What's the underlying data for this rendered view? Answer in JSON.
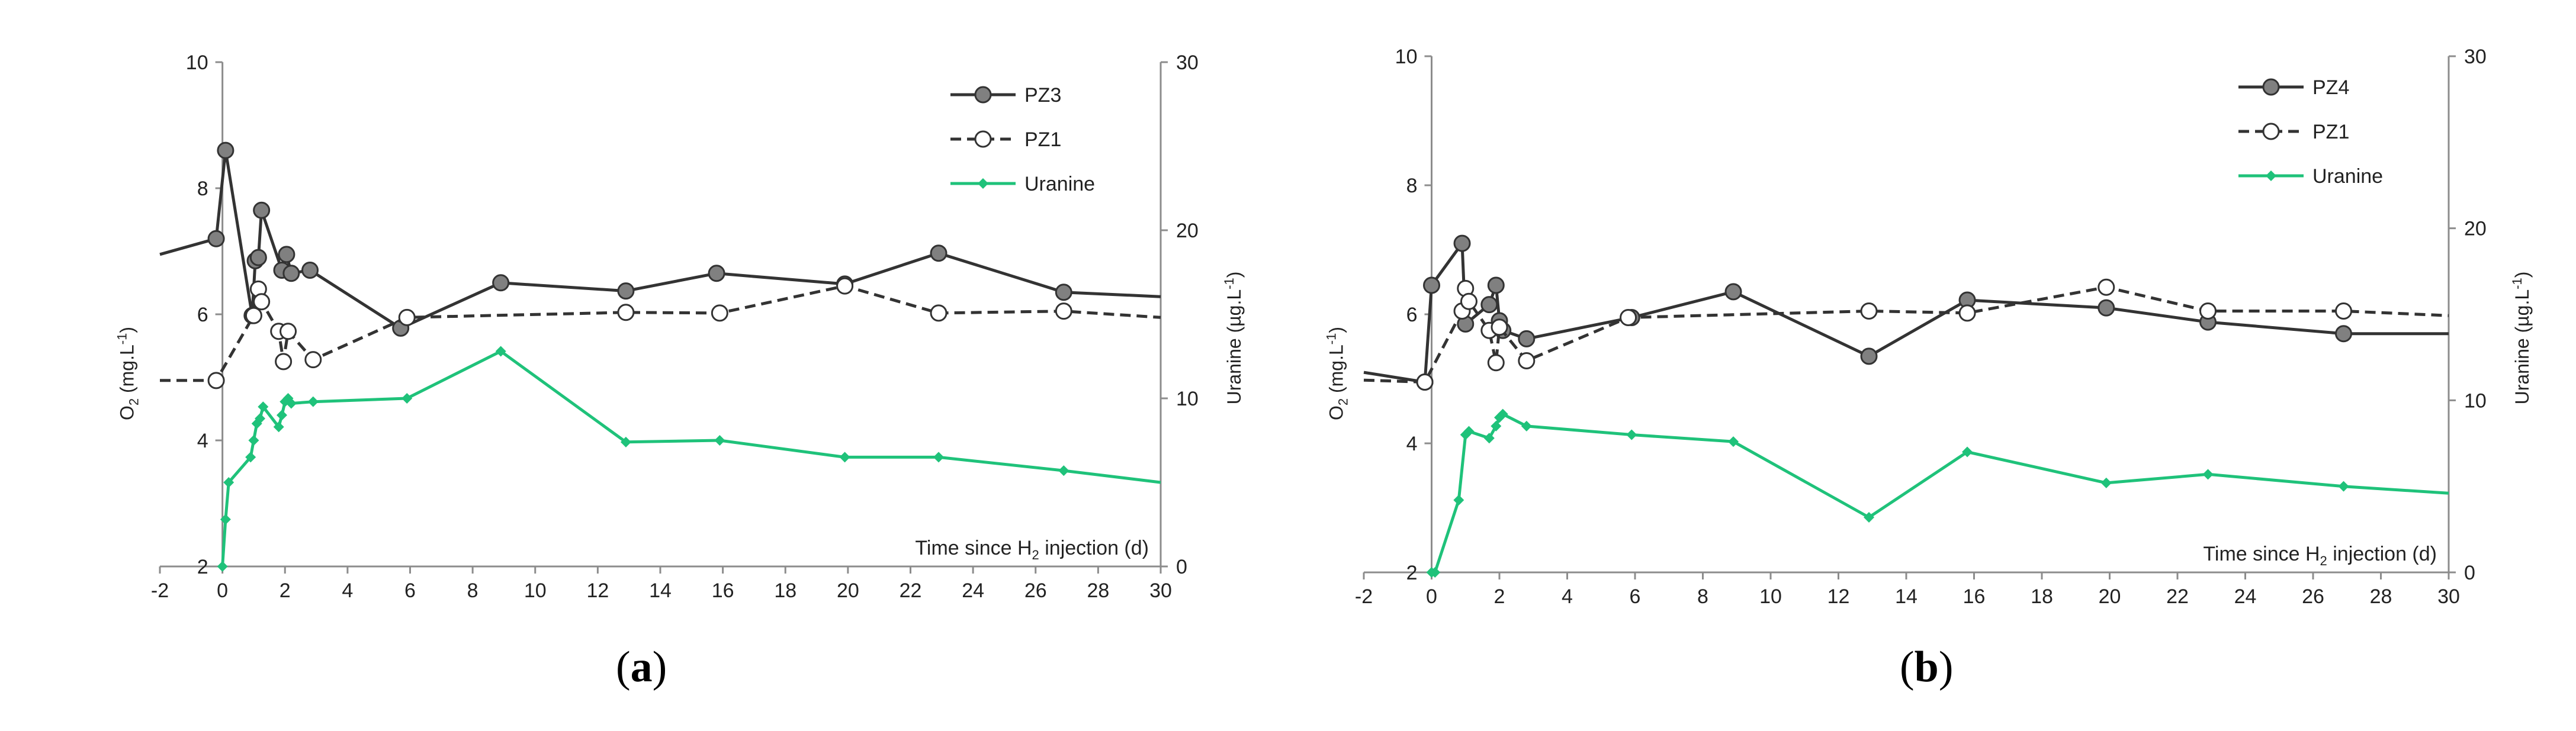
{
  "colors": {
    "oxygen": "#333333",
    "marker_fill": "#808080",
    "uranine": "#1fc27a",
    "axis": "#8c8c8c"
  },
  "panels": [
    {
      "label_open": "(",
      "label_letter": "a",
      "label_close": ")"
    },
    {
      "label_open": "(",
      "label_letter": "b",
      "label_close": ")"
    }
  ],
  "chart_data": [
    {
      "type": "line",
      "panel": "a",
      "xlabel": "Time since H",
      "xlabel_sub": "2",
      "xlabel_end": " injection (d)",
      "ylabel": "O",
      "ylabel_sub": "2",
      "ylabel_end": " (mg.L",
      "ylabel_sup": "-1",
      "ylabel_close": ")",
      "y2label": "Uranine (µg.L",
      "y2label_sup": "-1",
      "y2label_close": ")",
      "xlim": [
        -2,
        30
      ],
      "ylim": [
        2,
        10
      ],
      "y2lim": [
        0,
        30
      ],
      "xticks": [
        -2,
        0,
        2,
        4,
        6,
        8,
        10,
        12,
        14,
        16,
        18,
        20,
        22,
        24,
        26,
        28,
        30
      ],
      "yticks": [
        2,
        4,
        6,
        8,
        10
      ],
      "y2ticks": [
        0,
        10,
        20,
        30
      ],
      "legend_position": "top-right",
      "series": [
        {
          "name": "PZ3",
          "axis": "left",
          "style": "solid-filled-circle",
          "x": [
            -2,
            -0.2,
            0.1,
            0.95,
            1.05,
            1.15,
            1.25,
            1.9,
            2.05,
            2.2,
            2.8,
            5.7,
            8.9,
            12.9,
            15.8,
            19.9,
            22.9,
            26.9,
            30
          ],
          "y": [
            6.95,
            7.2,
            8.6,
            5.98,
            6.85,
            6.9,
            7.65,
            6.7,
            6.95,
            6.65,
            6.7,
            5.78,
            6.5,
            6.37,
            6.65,
            6.48,
            6.97,
            6.35,
            6.28
          ]
        },
        {
          "name": "PZ1",
          "axis": "left",
          "style": "dashed-open-circle",
          "x": [
            -2,
            -0.2,
            1.0,
            1.15,
            1.25,
            1.8,
            1.95,
            2.1,
            2.9,
            5.9,
            12.9,
            15.9,
            19.9,
            22.9,
            26.9,
            30
          ],
          "y": [
            4.95,
            4.95,
            5.98,
            6.4,
            6.2,
            5.73,
            5.25,
            5.73,
            5.28,
            5.95,
            6.03,
            6.02,
            6.45,
            6.02,
            6.05,
            5.95
          ]
        },
        {
          "name": "Uranine",
          "axis": "right",
          "style": "solid-diamond",
          "x": [
            0,
            0.1,
            0.2,
            0.9,
            1.0,
            1.1,
            1.2,
            1.3,
            1.8,
            1.9,
            2.0,
            2.1,
            2.2,
            2.9,
            5.9,
            8.9,
            12.9,
            15.9,
            19.9,
            22.9,
            26.9,
            30
          ],
          "y": [
            0,
            2.8,
            5.0,
            6.5,
            7.5,
            8.5,
            8.8,
            9.5,
            8.3,
            9.0,
            9.8,
            10.0,
            9.7,
            9.8,
            10.0,
            12.8,
            7.4,
            7.5,
            6.5,
            6.5,
            5.7,
            5.0
          ]
        }
      ]
    },
    {
      "type": "line",
      "panel": "b",
      "xlabel": "Time since H",
      "xlabel_sub": "2",
      "xlabel_end": " injection (d)",
      "ylabel": "O",
      "ylabel_sub": "2",
      "ylabel_end": " (mg.L",
      "ylabel_sup": "-1",
      "ylabel_close": ")",
      "y2label": "Uranine (µg.L",
      "y2label_sup": "-1",
      "y2label_close": ")",
      "xlim": [
        -2,
        30
      ],
      "ylim": [
        2,
        10
      ],
      "y2lim": [
        0,
        30
      ],
      "xticks": [
        -2,
        0,
        2,
        4,
        6,
        8,
        10,
        12,
        14,
        16,
        18,
        20,
        22,
        24,
        26,
        28,
        30
      ],
      "yticks": [
        2,
        4,
        6,
        8,
        10
      ],
      "y2ticks": [
        0,
        10,
        20,
        30
      ],
      "legend_position": "top-right",
      "series": [
        {
          "name": "PZ4",
          "axis": "left",
          "style": "solid-filled-circle",
          "x": [
            -2,
            -0.2,
            0.0,
            0.9,
            1.0,
            1.7,
            1.9,
            2.0,
            2.1,
            2.8,
            5.9,
            8.9,
            12.9,
            15.8,
            19.9,
            22.9,
            26.9,
            30
          ],
          "y": [
            5.1,
            4.95,
            6.45,
            7.1,
            5.85,
            6.15,
            6.45,
            5.9,
            5.75,
            5.62,
            5.95,
            6.35,
            5.35,
            6.22,
            6.1,
            5.88,
            5.7,
            5.7
          ]
        },
        {
          "name": "PZ1",
          "axis": "left",
          "style": "dashed-open-circle",
          "x": [
            -2,
            -0.2,
            0.9,
            1.0,
            1.1,
            1.7,
            1.9,
            2.0,
            2.8,
            5.8,
            12.9,
            15.8,
            19.9,
            22.9,
            26.9,
            30
          ],
          "y": [
            4.98,
            4.95,
            6.05,
            6.4,
            6.2,
            5.75,
            5.25,
            5.8,
            5.28,
            5.95,
            6.05,
            6.02,
            6.42,
            6.05,
            6.05,
            5.98
          ]
        },
        {
          "name": "Uranine",
          "axis": "right",
          "style": "solid-diamond",
          "x": [
            0,
            0.1,
            0.8,
            1.0,
            1.1,
            1.7,
            1.9,
            2.0,
            2.1,
            2.8,
            5.9,
            8.9,
            12.9,
            15.8,
            19.9,
            22.9,
            26.9,
            30
          ],
          "y": [
            0,
            0,
            4.2,
            8.0,
            8.2,
            7.8,
            8.5,
            9.0,
            9.2,
            8.5,
            8.0,
            7.6,
            3.2,
            7.0,
            5.2,
            5.7,
            5.0,
            4.6
          ]
        }
      ]
    }
  ]
}
